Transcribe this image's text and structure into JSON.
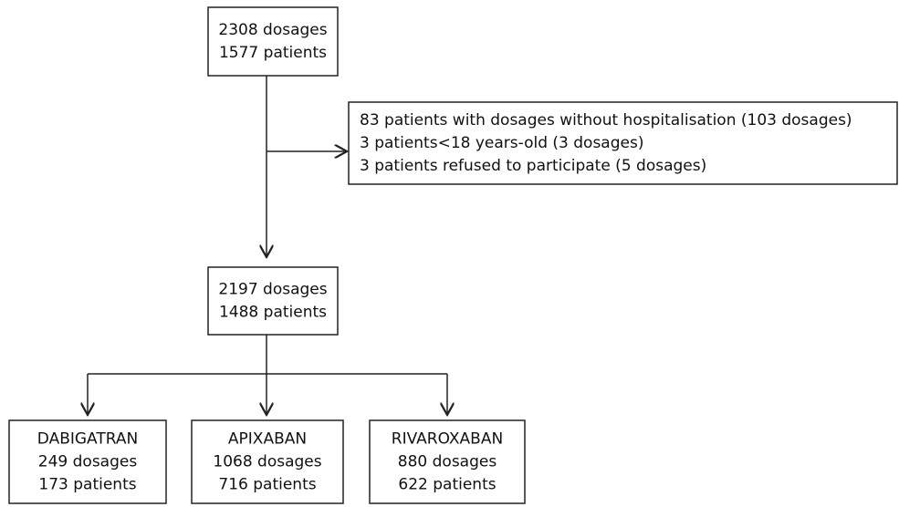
{
  "nodes": [
    {
      "id": "start",
      "lines": [
        "2308 dosages",
        "1577 patients"
      ]
    },
    {
      "id": "excluded",
      "lines": [
        "83 patients with dosages without hospitalisation (103 dosages)",
        "3 patients<18 years-old (3 dosages)",
        "3 patients refused to participate (5 dosages)"
      ]
    },
    {
      "id": "included",
      "lines": [
        "2197 dosages",
        "1488 patients"
      ]
    },
    {
      "id": "dabigatran",
      "lines": [
        "DABIGATRAN",
        "249 dosages",
        "173 patients"
      ]
    },
    {
      "id": "apixaban",
      "lines": [
        "APIXABAN",
        "1068 dosages",
        "716 patients"
      ]
    },
    {
      "id": "rivaroxaban",
      "lines": [
        "RIVAROXABAN",
        "880 dosages",
        "622 patients"
      ]
    }
  ]
}
